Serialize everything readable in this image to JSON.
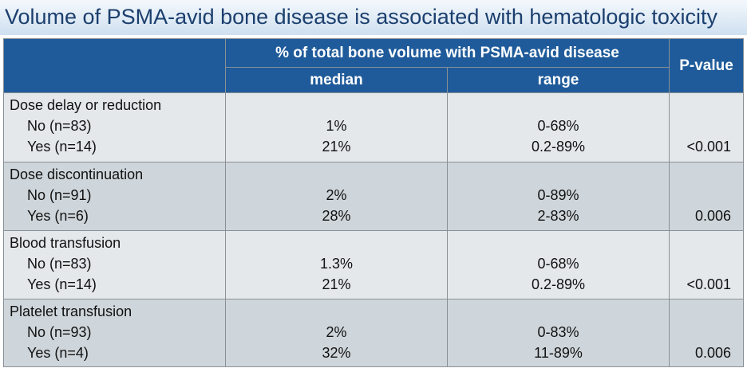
{
  "title": "Volume of PSMA-avid bone disease is associated with hematologic toxicity",
  "table": {
    "header": {
      "group": "% of total bone volume with PSMA-avid disease",
      "median": "median",
      "range": "range",
      "pvalue": "P-value"
    },
    "groups": [
      {
        "label": "Dose delay or reduction",
        "pvalue": "<0.001",
        "rows": [
          {
            "label": "No (n=83)",
            "median": "1%",
            "range": "0-68%"
          },
          {
            "label": "Yes (n=14)",
            "median": "21%",
            "range": "0.2-89%"
          }
        ]
      },
      {
        "label": "Dose discontinuation",
        "pvalue": "0.006",
        "rows": [
          {
            "label": "No (n=91)",
            "median": "2%",
            "range": "0-89%"
          },
          {
            "label": "Yes (n=6)",
            "median": "28%",
            "range": "2-83%"
          }
        ]
      },
      {
        "label": "Blood transfusion",
        "pvalue": "<0.001",
        "rows": [
          {
            "label": "No (n=83)",
            "median": "1.3%",
            "range": "0-68%"
          },
          {
            "label": "Yes (n=14)",
            "median": "21%",
            "range": "0.2-89%"
          }
        ]
      },
      {
        "label": "Platelet transfusion",
        "pvalue": "0.006",
        "rows": [
          {
            "label": "No (n=93)",
            "median": "2%",
            "range": "0-83%"
          },
          {
            "label": "Yes (n=4)",
            "median": "32%",
            "range": "11-89%"
          }
        ]
      }
    ]
  }
}
